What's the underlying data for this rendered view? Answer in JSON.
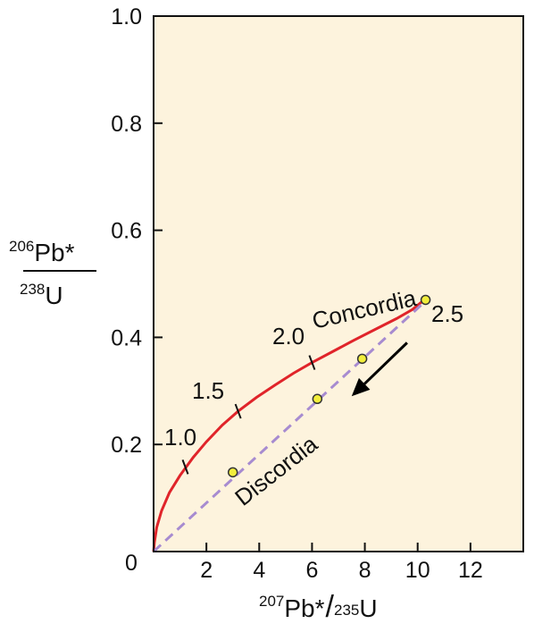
{
  "chart_data": {
    "type": "line",
    "title": "",
    "xlabel": {
      "sup1": "207",
      "main1": "Pb*",
      "sep": "/",
      "sup2": "235",
      "main2": "U"
    },
    "ylabel": {
      "num_sup": "206",
      "num_main": "Pb*",
      "den_sup": "238",
      "den_main": "U"
    },
    "xlim": [
      0,
      14
    ],
    "ylim": [
      0,
      1.0
    ],
    "x_ticks": [
      2,
      4,
      6,
      8,
      10,
      12
    ],
    "x_tick_labels": [
      "2",
      "4",
      "6",
      "8",
      "10",
      "12"
    ],
    "y_ticks": [
      0.2,
      0.4,
      0.6,
      0.8,
      1.0
    ],
    "y_tick_labels": [
      "0.2",
      "0.4",
      "0.6",
      "0.8",
      "1.0"
    ],
    "origin_label": "0",
    "grid": false,
    "background_color": "#fdf3dd",
    "series": [
      {
        "name": "Concordia",
        "color": "#e0242a",
        "style": "solid",
        "x": [
          0,
          0.03,
          0.12,
          0.3,
          0.6,
          1.0,
          1.5,
          2.0,
          2.6,
          3.2,
          3.9,
          4.6,
          5.3,
          6.0,
          6.8,
          7.6,
          8.4,
          9.2,
          9.8,
          10.2
        ],
        "y": [
          0,
          0.017,
          0.045,
          0.076,
          0.11,
          0.142,
          0.176,
          0.205,
          0.236,
          0.262,
          0.288,
          0.311,
          0.333,
          0.353,
          0.374,
          0.395,
          0.415,
          0.435,
          0.452,
          0.468
        ]
      },
      {
        "name": "Discordia",
        "color": "#a78bd0",
        "style": "dashed",
        "x": [
          0,
          10.3
        ],
        "y": [
          0,
          0.468
        ]
      }
    ],
    "age_ticks": [
      {
        "label": "1.0",
        "x": 1.2,
        "y": 0.158
      },
      {
        "label": "1.5",
        "x": 3.2,
        "y": 0.262
      },
      {
        "label": "2.0",
        "x": 6.0,
        "y": 0.353
      },
      {
        "label": "2.5",
        "x": 10.3,
        "y": 0.468
      }
    ],
    "points": [
      {
        "x": 3.0,
        "y": 0.148,
        "color": "#f2ee3b"
      },
      {
        "x": 6.2,
        "y": 0.285,
        "color": "#f2ee3b"
      },
      {
        "x": 7.9,
        "y": 0.36,
        "color": "#f2ee3b"
      },
      {
        "x": 10.3,
        "y": 0.47,
        "color": "#f2ee3b"
      }
    ],
    "arrow": {
      "from": [
        9.6,
        0.39
      ],
      "to": [
        7.5,
        0.29
      ],
      "color": "#000000"
    }
  }
}
